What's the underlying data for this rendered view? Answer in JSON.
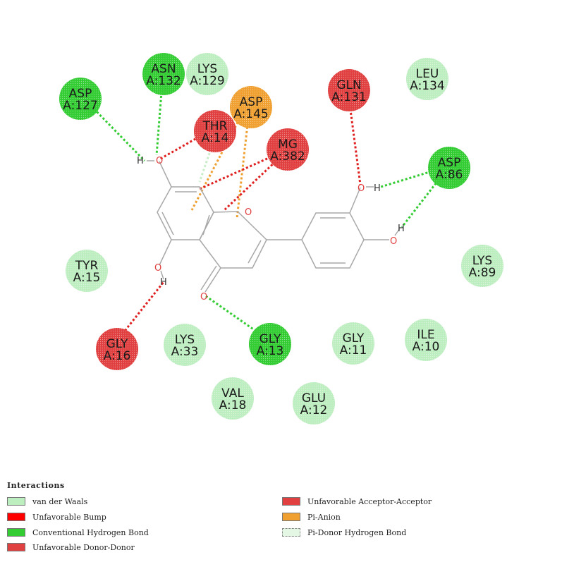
{
  "colors": {
    "vdw": "#bdeec0",
    "conventional_hbond": "#33cc33",
    "unfavorable_bump": "#ff0000",
    "unfavorable_donor_donor": "#e04040",
    "unfavorable_acceptor_acceptor": "#e04040",
    "pi_anion": "#f0a030",
    "pi_donor_hbond": "#e4f7e4",
    "bond": "#a8a8a8",
    "oxygen": "#e04040",
    "ring_n_like": "#8c8cff"
  },
  "residues": [
    {
      "id": "asp127",
      "name": "ASP",
      "num": "A:127",
      "type": "conventional_hbond"
    },
    {
      "id": "asn132",
      "name": "ASN",
      "num": "A:132",
      "type": "conventional_hbond"
    },
    {
      "id": "lys129",
      "name": "LYS",
      "num": "A:129",
      "type": "vdw"
    },
    {
      "id": "asp145",
      "name": "ASP",
      "num": "A:145",
      "type": "pi_anion"
    },
    {
      "id": "thr14",
      "name": "THR",
      "num": "A:14",
      "type": "unfavorable"
    },
    {
      "id": "mg382",
      "name": "MG",
      "num": "A:382",
      "type": "unfavorable"
    },
    {
      "id": "gln131",
      "name": "GLN",
      "num": "A:131",
      "type": "unfavorable"
    },
    {
      "id": "leu134",
      "name": "LEU",
      "num": "A:134",
      "type": "vdw"
    },
    {
      "id": "asp86",
      "name": "ASP",
      "num": "A:86",
      "type": "conventional_hbond"
    },
    {
      "id": "lys89",
      "name": "LYS",
      "num": "A:89",
      "type": "vdw"
    },
    {
      "id": "tyr15",
      "name": "TYR",
      "num": "A:15",
      "type": "vdw"
    },
    {
      "id": "gly16",
      "name": "GLY",
      "num": "A:16",
      "type": "unfavorable"
    },
    {
      "id": "lys33",
      "name": "LYS",
      "num": "A:33",
      "type": "vdw"
    },
    {
      "id": "gly13",
      "name": "GLY",
      "num": "A:13",
      "type": "conventional_hbond"
    },
    {
      "id": "gly11",
      "name": "GLY",
      "num": "A:11",
      "type": "vdw"
    },
    {
      "id": "ile10",
      "name": "ILE",
      "num": "A:10",
      "type": "vdw"
    },
    {
      "id": "val18",
      "name": "VAL",
      "num": "A:18",
      "type": "vdw"
    },
    {
      "id": "glu12",
      "name": "GLU",
      "num": "A:12",
      "type": "vdw"
    }
  ],
  "atom_labels": {
    "oxygen": "O",
    "hydrogen": "H"
  },
  "legend": {
    "title": "Interactions",
    "items": [
      {
        "label": "van der Waals",
        "type": "vdw"
      },
      {
        "label": "Unfavorable Bump",
        "type": "unfavorable_bump"
      },
      {
        "label": "Conventional Hydrogen Bond",
        "type": "conventional_hbond"
      },
      {
        "label": "Unfavorable Donor-Donor",
        "type": "unfavorable_donor_donor"
      },
      {
        "label": "Unfavorable Acceptor-Acceptor",
        "type": "unfavorable_acceptor_acceptor"
      },
      {
        "label": "Pi-Anion",
        "type": "pi_anion"
      },
      {
        "label": "Pi-Donor Hydrogen Bond",
        "type": "pi_donor_hbond"
      }
    ]
  }
}
